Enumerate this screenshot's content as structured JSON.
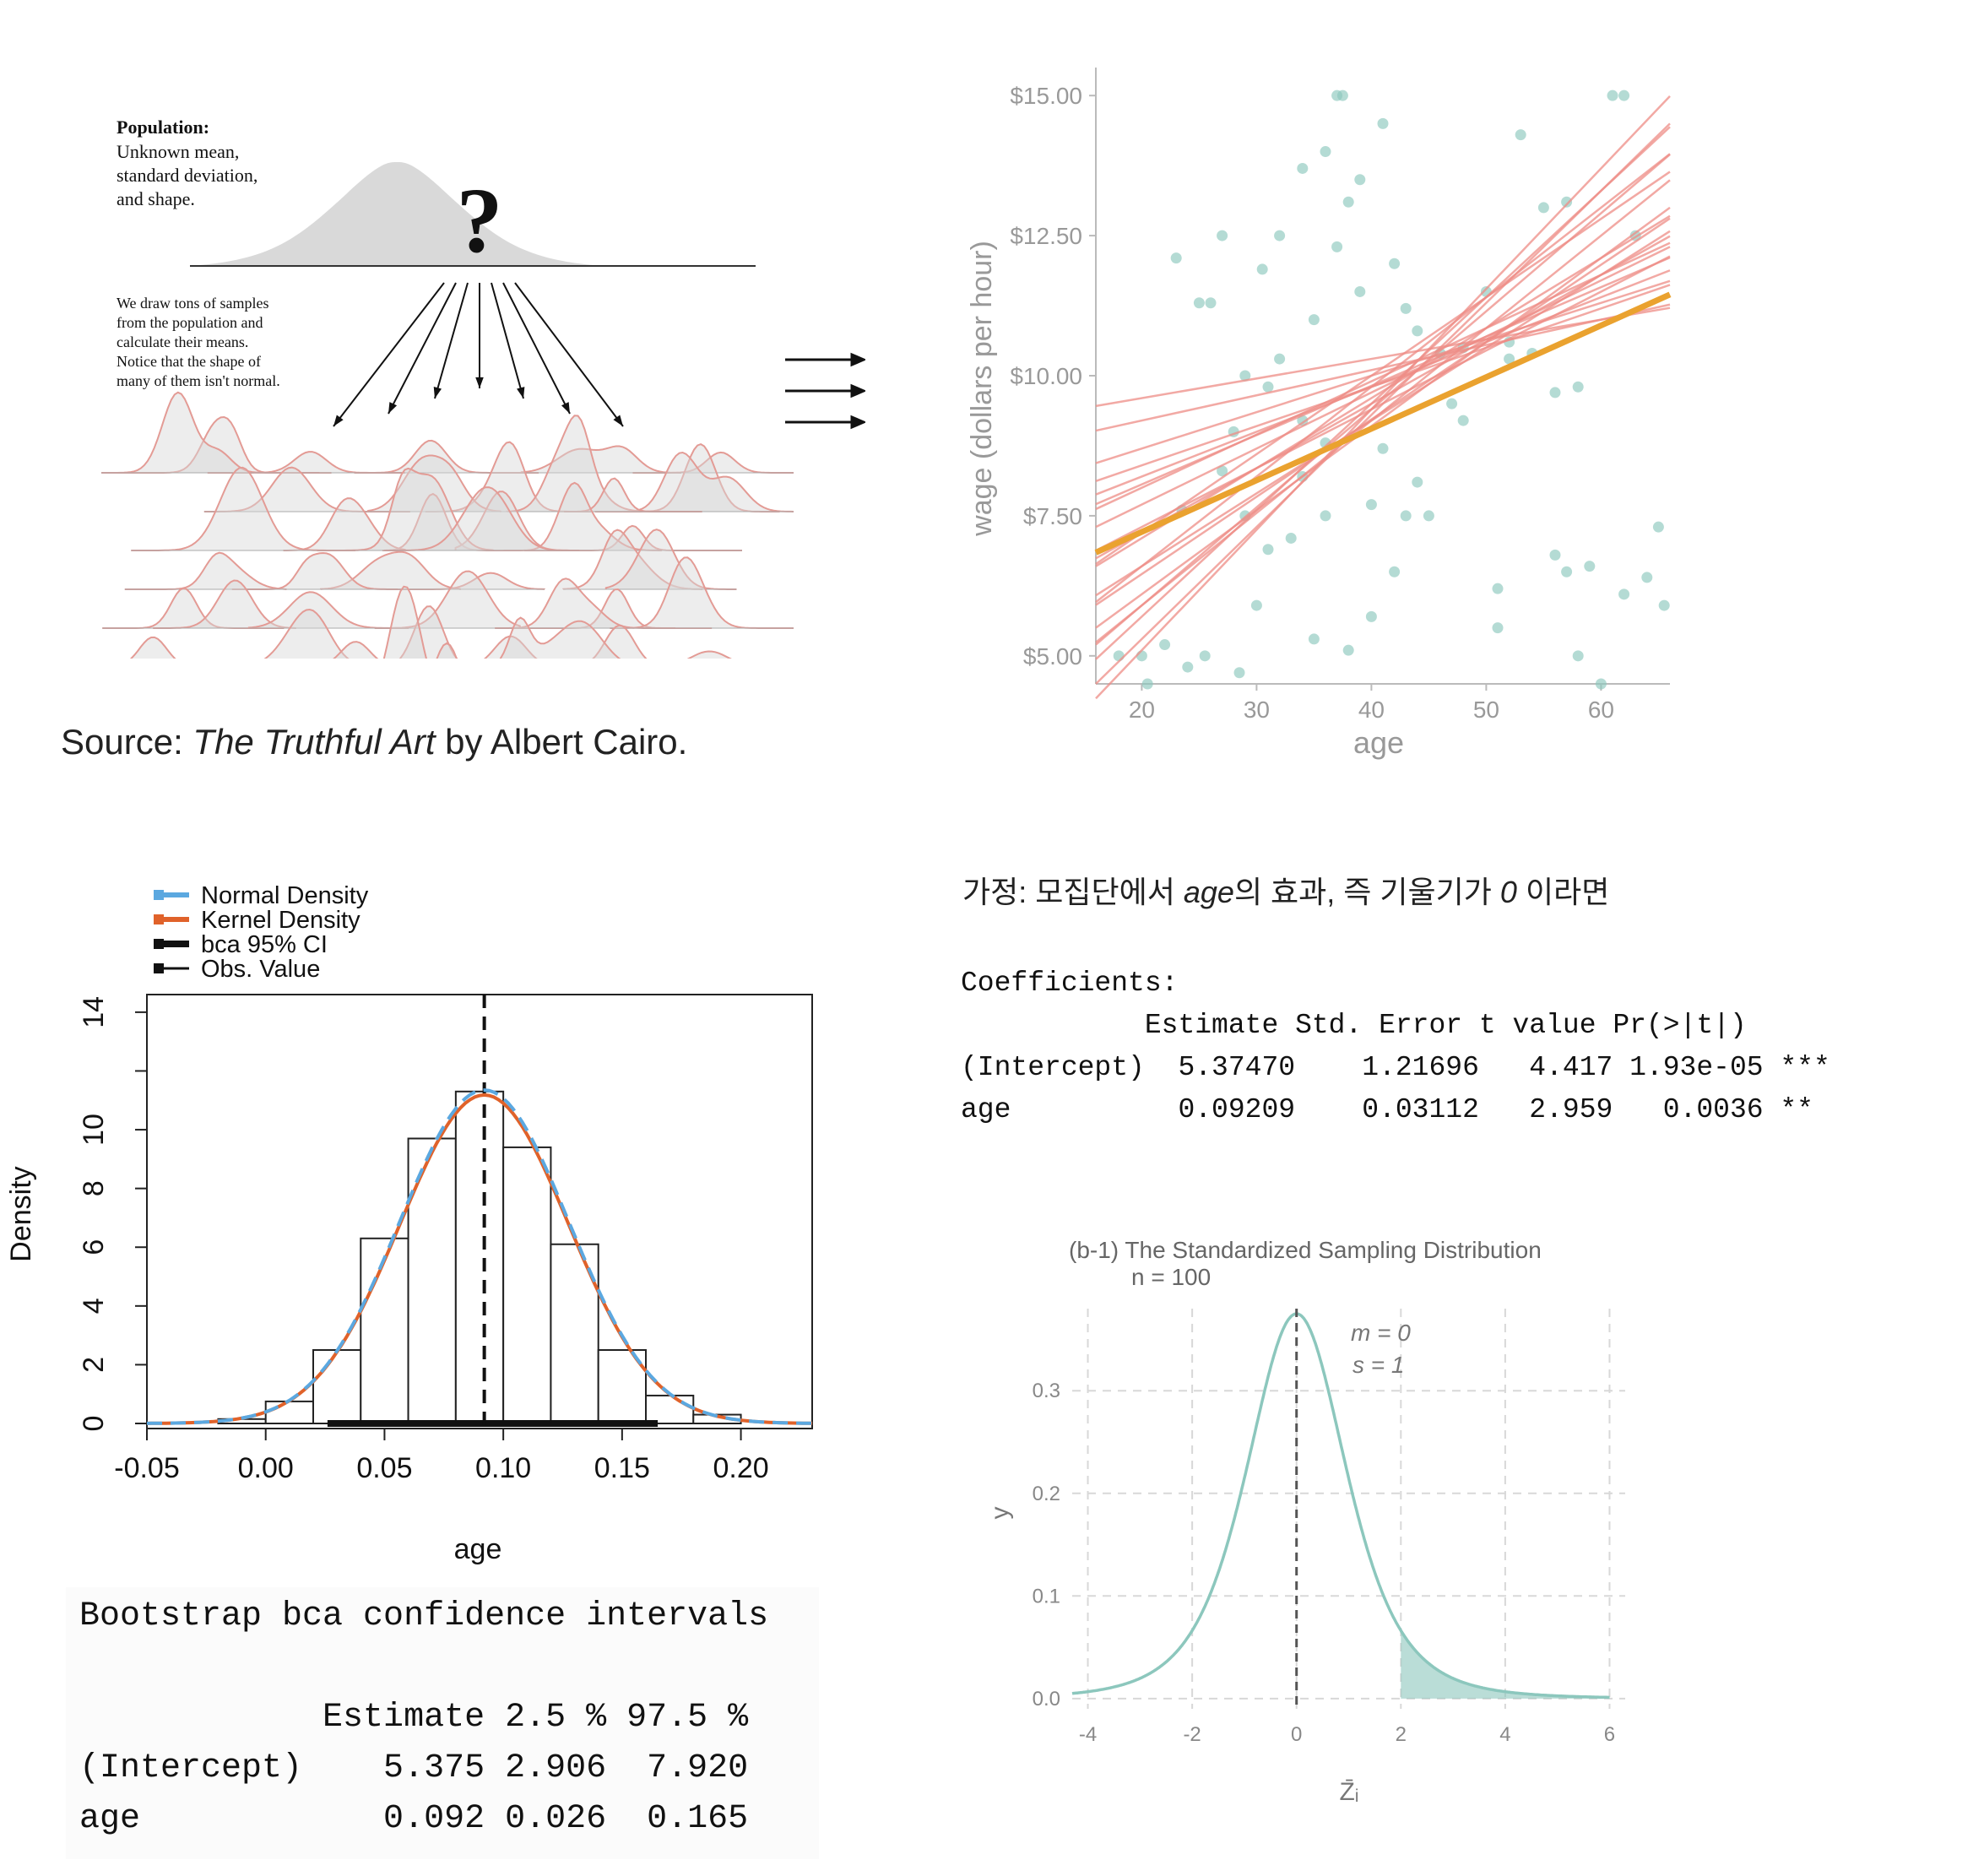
{
  "population_panel": {
    "population_title": "Population:",
    "population_desc": [
      "Unknown mean,",
      "standard deviation,",
      "and shape."
    ],
    "question_mark": "?",
    "samples_desc": [
      "We draw tons of samples",
      "from the population and",
      "calculate their means.",
      "Notice that the shape of",
      "many of them isn't normal."
    ],
    "caption_prefix": "Source: ",
    "caption_title": "The Truthful Art",
    "caption_suffix": " by Albert Cairo."
  },
  "hypothesis": {
    "prefix": "가정: 모집단에서 ",
    "var": "age",
    "middle": "의 효과, 즉 기울기가 ",
    "zero": "0",
    "suffix": " 이라면"
  },
  "coef_table": {
    "title": "Coefficients:",
    "header": "           Estimate Std. Error t value Pr(>|t|)",
    "rows": [
      "(Intercept)  5.37470    1.21696   4.417 1.93e-05 ***",
      "age          0.09209    0.03112   2.959   0.0036 **"
    ]
  },
  "boot_table": {
    "title": "Bootstrap bca confidence intervals",
    "header": "            Estimate 2.5 % 97.5 %",
    "rows": [
      "(Intercept)    5.375 2.906  7.920",
      "age            0.092 0.026  0.165"
    ]
  },
  "colors": {
    "teal": "#8cc7bd",
    "regression_lines": "#ee8c86",
    "mean_line": "#eaa22f",
    "normal_density": "#5ba8e0",
    "kernel_density": "#e0622a"
  },
  "chart_data": [
    {
      "type": "scatter",
      "xlabel": "age",
      "ylabel": "wage (dollars per hour)",
      "xlim": [
        16,
        66
      ],
      "ylim": [
        4.5,
        15.5
      ],
      "x_ticks": [
        20,
        30,
        40,
        50,
        60
      ],
      "x_tick_labels": [
        "20",
        "30",
        "40",
        "50",
        "60"
      ],
      "y_ticks": [
        5,
        7.5,
        10,
        12.5,
        15
      ],
      "y_tick_labels": [
        "$5.00",
        "$7.50",
        "$10.00",
        "$12.50",
        "$15.00"
      ],
      "points": [
        [
          18,
          5
        ],
        [
          20,
          5
        ],
        [
          20.5,
          4.5
        ],
        [
          22,
          5.2
        ],
        [
          23,
          12.1
        ],
        [
          23.5,
          7.6
        ],
        [
          24,
          4.8
        ],
        [
          25,
          11.3
        ],
        [
          25.5,
          5
        ],
        [
          26,
          11.3
        ],
        [
          27,
          12.5
        ],
        [
          27,
          8.3
        ],
        [
          28,
          9
        ],
        [
          28.5,
          4.7
        ],
        [
          29,
          10
        ],
        [
          29,
          7.5
        ],
        [
          30,
          5.9
        ],
        [
          30.5,
          11.9
        ],
        [
          31,
          9.8
        ],
        [
          31,
          6.9
        ],
        [
          32,
          10.3
        ],
        [
          32,
          12.5
        ],
        [
          33,
          7.1
        ],
        [
          34,
          13.7
        ],
        [
          34,
          8.2
        ],
        [
          35,
          11
        ],
        [
          35,
          5.3
        ],
        [
          36,
          14
        ],
        [
          36,
          7.5
        ],
        [
          37,
          15
        ],
        [
          37,
          12.3
        ],
        [
          37.5,
          15
        ],
        [
          38,
          13.1
        ],
        [
          38,
          5.1
        ],
        [
          39,
          13.5
        ],
        [
          39,
          11.5
        ],
        [
          40,
          7.7
        ],
        [
          40,
          5.7
        ],
        [
          41,
          14.5
        ],
        [
          41,
          8.7
        ],
        [
          42,
          6.5
        ],
        [
          42,
          12
        ],
        [
          43,
          11.2
        ],
        [
          43,
          7.5
        ],
        [
          44,
          8.1
        ],
        [
          45,
          7.5
        ],
        [
          46,
          10.4
        ],
        [
          47,
          9.5
        ],
        [
          48,
          10.5
        ],
        [
          50,
          11.5
        ],
        [
          51,
          6.2
        ],
        [
          51,
          5.5
        ],
        [
          52,
          10.3
        ],
        [
          53,
          14.3
        ],
        [
          55,
          13
        ],
        [
          56,
          9.7
        ],
        [
          56,
          6.8
        ],
        [
          57,
          13.1
        ],
        [
          57,
          6.5
        ],
        [
          58,
          9.8
        ],
        [
          58,
          5
        ],
        [
          59,
          6.6
        ],
        [
          60,
          4.5
        ],
        [
          61,
          15
        ],
        [
          62,
          15
        ],
        [
          62,
          6.1
        ],
        [
          64,
          6.4
        ],
        [
          65,
          7.3
        ],
        [
          65.5,
          5.9
        ],
        [
          63,
          12.5
        ],
        [
          44,
          10.8
        ],
        [
          48,
          9.2
        ],
        [
          52,
          10.6
        ],
        [
          54,
          10.4
        ],
        [
          36,
          8.8
        ],
        [
          34,
          9.2
        ]
      ],
      "series": [
        {
          "name": "",
          "lines": [
            [
              5.37,
              0.0921
            ]
          ]
        },
        {
          "name": "",
          "lines": [
            [
              8.9,
              0.035
            ],
            [
              7.4,
              0.065
            ],
            [
              6.1,
              0.095
            ],
            [
              4.4,
              0.14
            ],
            [
              1.3,
              0.2
            ],
            [
              3.4,
              0.16
            ],
            [
              2.4,
              0.175
            ],
            [
              4.9,
              0.115
            ],
            [
              5.7,
              0.1
            ],
            [
              6.6,
              0.08
            ],
            [
              3.1,
              0.15
            ],
            [
              4.0,
              0.13
            ],
            [
              2.6,
              0.165
            ],
            [
              7.0,
              0.07
            ],
            [
              5.2,
              0.105
            ],
            [
              3.7,
              0.138
            ],
            [
              8.3,
              0.045
            ],
            [
              1.9,
              0.19
            ],
            [
              6.3,
              0.088
            ],
            [
              4.6,
              0.125
            ],
            [
              0.8,
              0.215
            ]
          ]
        }
      ]
    },
    {
      "type": "bar",
      "xlabel": "age",
      "ylabel": "Density",
      "xlim": [
        -0.05,
        0.23
      ],
      "ylim": [
        0,
        14
      ],
      "x_ticks": [
        -0.05,
        0.0,
        0.05,
        0.1,
        0.15,
        0.2
      ],
      "x_tick_labels": [
        "-0.05",
        "0.00",
        "0.05",
        "0.10",
        "0.15",
        "0.20"
      ],
      "y_ticks": [
        0,
        2,
        4,
        6,
        8,
        10,
        14
      ],
      "y_tick_labels": [
        "0",
        "2",
        "4",
        "6",
        "8",
        "10",
        "14"
      ],
      "bin_width": 0.02,
      "bins": [
        {
          "x0": -0.02,
          "density": 0.15
        },
        {
          "x0": 0.0,
          "density": 0.75
        },
        {
          "x0": 0.02,
          "density": 2.5
        },
        {
          "x0": 0.04,
          "density": 6.3
        },
        {
          "x0": 0.06,
          "density": 9.7
        },
        {
          "x0": 0.08,
          "density": 11.3
        },
        {
          "x0": 0.1,
          "density": 9.4
        },
        {
          "x0": 0.12,
          "density": 6.1
        },
        {
          "x0": 0.14,
          "density": 2.5
        },
        {
          "x0": 0.16,
          "density": 0.95
        },
        {
          "x0": 0.18,
          "density": 0.3
        }
      ],
      "normal": {
        "mean": 0.092,
        "sd": 0.0355
      },
      "ci": [
        0.026,
        0.165
      ],
      "observed": 0.092,
      "legend": [
        "Normal Density",
        "Kernel Density",
        "bca 95% CI",
        "Obs. Value"
      ],
      "legend_position": "top-left"
    },
    {
      "type": "area",
      "title": "(b-1) The Standardized Sampling Distribution",
      "subtitle": "n = 100",
      "xlabel": "Z̄ᵢ",
      "ylabel": "y",
      "xlim": [
        -4.3,
        6.3
      ],
      "ylim": [
        -0.01,
        0.38
      ],
      "x_ticks": [
        -4,
        -2,
        0,
        2,
        4,
        6
      ],
      "x_tick_labels": [
        "-4",
        "-2",
        "0",
        "2",
        "4",
        "6"
      ],
      "y_ticks": [
        0.0,
        0.1,
        0.2,
        0.3
      ],
      "y_tick_labels": [
        "0.0",
        "0.1",
        "0.2",
        "0.3"
      ],
      "distribution": "t",
      "df": 4,
      "shaded_from": 2.0,
      "mean_line": 0,
      "annotations": [
        "m = 0",
        "s = 1"
      ],
      "grid": true
    }
  ]
}
